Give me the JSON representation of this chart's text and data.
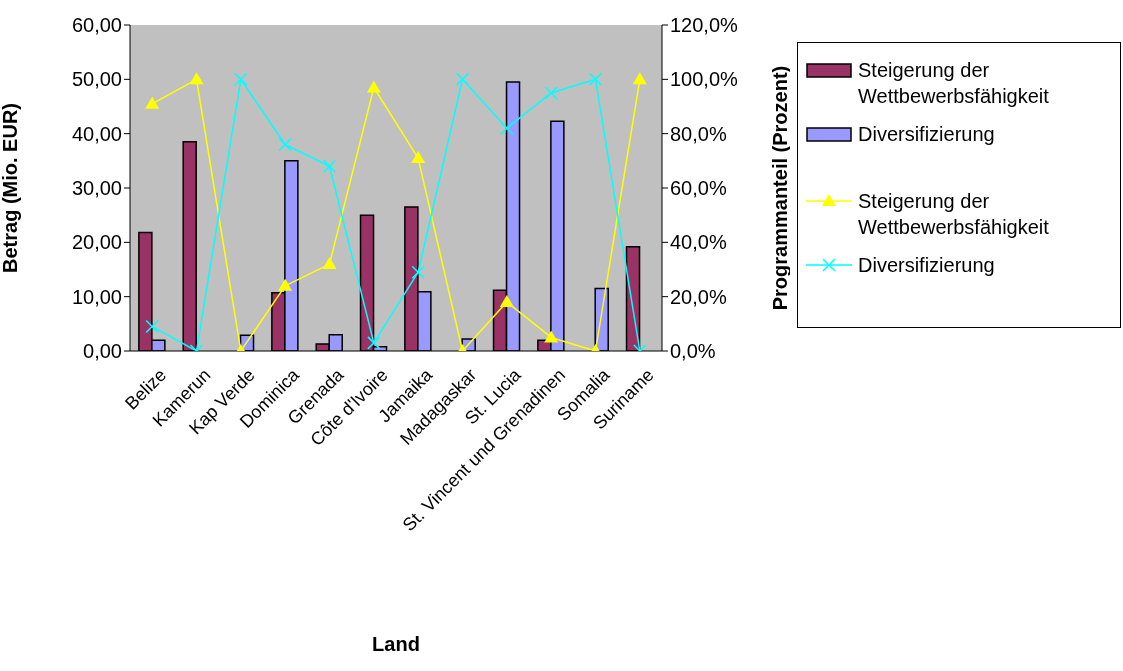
{
  "chart_data": {
    "type": "bar",
    "xlabel": "Land",
    "ylabel": "Betrag (Mio. EUR)",
    "y2label": "Programmanteil (Prozent)",
    "categories": [
      "Belize",
      "Kamerun",
      "Kap Verde",
      "Dominica",
      "Grenada",
      "Côte d'Ivoire",
      "Jamaika",
      "Madagaskar",
      "St. Lucia",
      "St. Vincent und Grenadinen",
      "Somalia",
      "Suriname"
    ],
    "series": [
      {
        "name": "Steigerung der Wettbewerbsfähigkeit",
        "color": "#993366",
        "values": [
          21.8,
          38.5,
          0,
          10.7,
          1.3,
          25,
          26.5,
          0,
          11.2,
          2,
          0,
          19.2
        ]
      },
      {
        "name": "Diversifizierung",
        "color": "#9999ff",
        "values": [
          2,
          0,
          2.9,
          35,
          3,
          0.8,
          10.9,
          2.2,
          49.5,
          42.3,
          11.5,
          0
        ]
      },
      {
        "name": "Steigerung der Wettbewerbsfähigkeit",
        "type": "line",
        "axis": "y2",
        "marker": "triangle",
        "color": "#ffff00",
        "values": [
          91,
          100,
          0,
          24,
          32,
          97,
          71,
          0,
          18,
          5,
          0,
          100
        ]
      },
      {
        "name": "Diversifizierung",
        "type": "line",
        "axis": "y2",
        "marker": "cross",
        "color": "#00ffff",
        "values": [
          9,
          0,
          100,
          76,
          68,
          3,
          29,
          100,
          82,
          95,
          100,
          0
        ]
      }
    ],
    "ylim": [
      0,
      60
    ],
    "yticks": [
      {
        "value": 0,
        "label": "0,00"
      },
      {
        "value": 10,
        "label": "10,00"
      },
      {
        "value": 20,
        "label": "20,00"
      },
      {
        "value": 30,
        "label": "30,00"
      },
      {
        "value": 40,
        "label": "40,00"
      },
      {
        "value": 50,
        "label": "50,00"
      },
      {
        "value": 60,
        "label": "60,00"
      }
    ],
    "y2lim": [
      0,
      120
    ],
    "y2ticks": [
      {
        "value": 0,
        "label": "0,0%"
      },
      {
        "value": 20,
        "label": "20,0%"
      },
      {
        "value": 40,
        "label": "40,0%"
      },
      {
        "value": 60,
        "label": "60,0%"
      },
      {
        "value": 80,
        "label": "80,0%"
      },
      {
        "value": 100,
        "label": "100,0%"
      },
      {
        "value": 120,
        "label": "120,0%"
      }
    ],
    "legend": "right"
  }
}
